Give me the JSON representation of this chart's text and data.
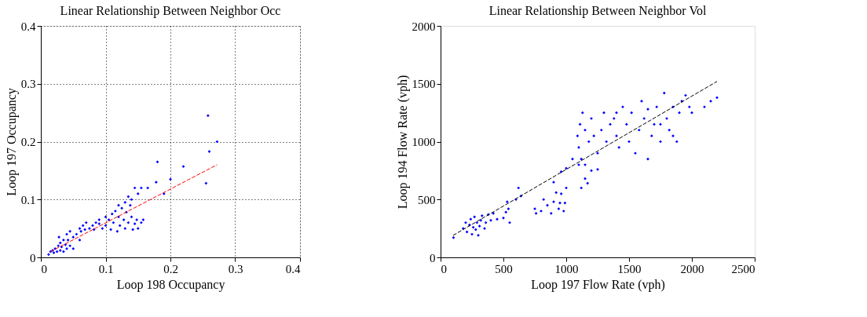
{
  "chart_data": [
    {
      "type": "scatter",
      "title": "Linear Relationship Between Neighbor Occ",
      "xlabel": "Loop 198 Occupancy",
      "ylabel": "Loop 197 Occupancy",
      "xlim": [
        0,
        0.4
      ],
      "ylim": [
        0,
        0.4
      ],
      "xticks": [
        0,
        0.1,
        0.2,
        0.3,
        0.4
      ],
      "yticks": [
        0,
        0.1,
        0.2,
        0.3,
        0.4
      ],
      "grid": true,
      "series": [
        {
          "marker": "diamond",
          "color": "#0000ff",
          "x": [
            0.012,
            0.015,
            0.018,
            0.02,
            0.022,
            0.025,
            0.027,
            0.03,
            0.03,
            0.032,
            0.035,
            0.035,
            0.038,
            0.04,
            0.04,
            0.042,
            0.045,
            0.045,
            0.028,
            0.05,
            0.05,
            0.055,
            0.06,
            0.062,
            0.065,
            0.06,
            0.068,
            0.07,
            0.075,
            0.08,
            0.082,
            0.085,
            0.09,
            0.095,
            0.09,
            0.1,
            0.1,
            0.105,
            0.108,
            0.11,
            0.112,
            0.115,
            0.118,
            0.12,
            0.12,
            0.122,
            0.125,
            0.128,
            0.13,
            0.13,
            0.132,
            0.135,
            0.138,
            0.14,
            0.142,
            0.145,
            0.148,
            0.15,
            0.155,
            0.158,
            0.14,
            0.135,
            0.145,
            0.155,
            0.15,
            0.165,
            0.178,
            0.18,
            0.19,
            0.2,
            0.22,
            0.255,
            0.258,
            0.26,
            0.272
          ],
          "values": [
            0.005,
            0.01,
            0.012,
            0.008,
            0.015,
            0.01,
            0.02,
            0.012,
            0.025,
            0.018,
            0.01,
            0.03,
            0.022,
            0.015,
            0.04,
            0.03,
            0.02,
            0.045,
            0.035,
            0.035,
            0.015,
            0.04,
            0.05,
            0.045,
            0.055,
            0.03,
            0.048,
            0.06,
            0.05,
            0.055,
            0.048,
            0.06,
            0.058,
            0.05,
            0.065,
            0.055,
            0.07,
            0.065,
            0.048,
            0.075,
            0.06,
            0.08,
            0.045,
            0.07,
            0.09,
            0.055,
            0.085,
            0.065,
            0.095,
            0.05,
            0.078,
            0.06,
            0.09,
            0.07,
            0.048,
            0.058,
            0.065,
            0.05,
            0.06,
            0.065,
            0.1,
            0.105,
            0.12,
            0.12,
            0.11,
            0.12,
            0.13,
            0.165,
            0.11,
            0.135,
            0.157,
            0.128,
            0.245,
            0.183,
            0.2
          ]
        },
        {
          "type": "line",
          "color": "#ff0000",
          "line_style": "dashed",
          "x": [
            0.015,
            0.272
          ],
          "values": [
            0.01,
            0.16
          ]
        }
      ]
    },
    {
      "type": "scatter",
      "title": "Linear Relationship Between Neighbor Vol",
      "xlabel": "Loop 197 Flow Rate (vph)",
      "ylabel": "Loop 194 Flow Rate (vph)",
      "xlim": [
        0,
        2500
      ],
      "ylim": [
        0,
        2000
      ],
      "xticks": [
        0,
        500,
        1000,
        1500,
        2000,
        2500
      ],
      "yticks": [
        0,
        500,
        1000,
        1500,
        2000
      ],
      "series": [
        {
          "marker": "diamond",
          "color": "#0000ff",
          "x": [
            103,
            180,
            200,
            210,
            230,
            240,
            250,
            260,
            270,
            280,
            290,
            300,
            310,
            320,
            330,
            350,
            360,
            380,
            400,
            420,
            450,
            500,
            520,
            530,
            540,
            550,
            600,
            620,
            640,
            750,
            760,
            800,
            820,
            850,
            880,
            900,
            920,
            940,
            950,
            960,
            980,
            990,
            1000,
            900,
            960,
            1000,
            1050,
            1100,
            1120,
            1150,
            1170,
            1120,
            1150,
            1200,
            1250,
            1090,
            1100,
            1110,
            1130,
            1150,
            1180,
            1200,
            1220,
            1250,
            1280,
            1300,
            1320,
            1350,
            1380,
            1400,
            1420,
            1450,
            1480,
            1500,
            1520,
            1550,
            1580,
            1600,
            1620,
            1650,
            1680,
            1700,
            1720,
            1750,
            1780,
            1800,
            1820,
            1850,
            1880,
            1900,
            1920,
            1950,
            1980,
            2000,
            2100,
            2150,
            2200,
            1750,
            1650,
            1400,
            1850
          ],
          "values": [
            171,
            250,
            300,
            220,
            280,
            330,
            200,
            260,
            350,
            240,
            300,
            190,
            270,
            320,
            360,
            250,
            300,
            370,
            320,
            380,
            330,
            340,
            390,
            480,
            420,
            300,
            500,
            600,
            530,
            420,
            380,
            400,
            500,
            450,
            380,
            480,
            560,
            420,
            470,
            550,
            400,
            470,
            600,
            650,
            740,
            770,
            850,
            800,
            600,
            680,
            640,
            850,
            800,
            750,
            760,
            1050,
            950,
            1150,
            1250,
            1100,
            1000,
            1200,
            1050,
            900,
            1100,
            1250,
            1000,
            1150,
            1200,
            1050,
            950,
            1300,
            1150,
            1000,
            1250,
            900,
            1100,
            1350,
            1200,
            850,
            1050,
            1150,
            1300,
            1000,
            1420,
            1200,
            1100,
            1300,
            1000,
            1250,
            1350,
            1400,
            1300,
            1250,
            1300,
            1350,
            1380,
            1150,
            1280,
            1250,
            1050
          ]
        },
        {
          "type": "line",
          "color": "#000000",
          "line_style": "dashed",
          "x": [
            100,
            2200
          ],
          "values": [
            190,
            1520
          ]
        }
      ]
    }
  ]
}
